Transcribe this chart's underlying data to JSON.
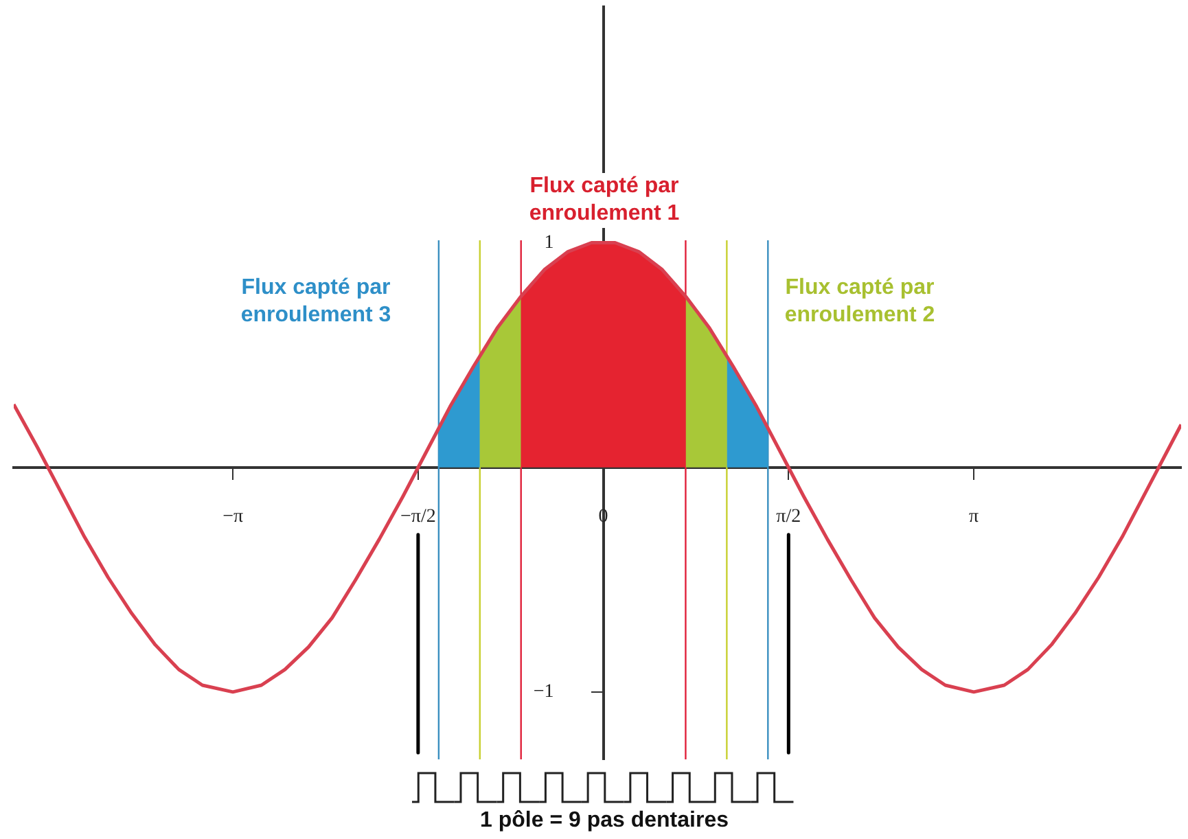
{
  "chart_data": {
    "type": "line",
    "xlim": [
      -5,
      4.9
    ],
    "ylim": [
      -1.3,
      2.05
    ],
    "xticks": [
      {
        "value": -3.1416,
        "label": "−π"
      },
      {
        "value": -1.5708,
        "label": "−π/2"
      },
      {
        "value": 0,
        "label": "0"
      },
      {
        "value": 1.5708,
        "label": "π/2"
      },
      {
        "value": 3.1416,
        "label": "π"
      }
    ],
    "yticks": [
      {
        "value": -1,
        "label": "−1"
      },
      {
        "value": 1,
        "label": "1"
      }
    ],
    "grid": false,
    "legend": false,
    "marker": "none",
    "series": [
      {
        "type": "area",
        "color": "#2e9ad0",
        "x": [
          -1.396,
          -1.3,
          -1.2,
          -1.1,
          -1.047
        ],
        "values": [
          0.17,
          0.27,
          0.36,
          0.45,
          0.5
        ]
      },
      {
        "type": "area",
        "color": "#a8c838",
        "x": [
          -1.047,
          -1,
          -0.9,
          -0.8,
          -0.698
        ],
        "values": [
          0.5,
          0.54,
          0.62,
          0.7,
          0.77
        ]
      },
      {
        "type": "area",
        "color": "#e52330",
        "x": [
          -0.698,
          -0.6,
          -0.5,
          -0.4,
          -0.3,
          -0.2,
          -0.1,
          0,
          0.1,
          0.2,
          0.3,
          0.4,
          0.5,
          0.6,
          0.698
        ],
        "values": [
          0.77,
          0.83,
          0.88,
          0.92,
          0.96,
          0.98,
          1,
          1,
          1,
          0.98,
          0.96,
          0.92,
          0.88,
          0.83,
          0.77
        ]
      },
      {
        "type": "area",
        "color": "#a8c838",
        "x": [
          0.698,
          0.8,
          0.9,
          1,
          1.047
        ],
        "values": [
          0.77,
          0.7,
          0.62,
          0.54,
          0.5
        ]
      },
      {
        "type": "area",
        "color": "#2e9ad0",
        "x": [
          1.047,
          1.1,
          1.2,
          1.3,
          1.396
        ],
        "values": [
          0.5,
          0.45,
          0.36,
          0.27,
          0.17
        ]
      },
      {
        "type": "line",
        "color": "#d94050",
        "x": [
          -5,
          -4.8,
          -4.6,
          -4.4,
          -4.2,
          -4,
          -3.8,
          -3.6,
          -3.4,
          -3.1416,
          -2.9,
          -2.7,
          -2.5,
          -2.3,
          -2.1,
          -1.9,
          -1.7,
          -1.5,
          -1.3,
          -1.1,
          -0.9,
          -0.7,
          -0.5,
          -0.3,
          -0.1,
          0,
          0.1,
          0.3,
          0.5,
          0.7,
          0.9,
          1.1,
          1.3,
          1.5,
          1.7,
          1.9,
          2.1,
          2.3,
          2.5,
          2.7,
          2.9,
          3.1416,
          3.4,
          3.6,
          3.8,
          4,
          4.2,
          4.4,
          4.6,
          4.8,
          4.9
        ],
        "values": [
          0.28,
          0.09,
          -0.11,
          -0.31,
          -0.49,
          -0.65,
          -0.79,
          -0.9,
          -0.97,
          -1,
          -0.97,
          -0.9,
          -0.8,
          -0.67,
          -0.5,
          -0.32,
          -0.13,
          0.07,
          0.27,
          0.45,
          0.62,
          0.76,
          0.88,
          0.96,
          1,
          1,
          1,
          0.96,
          0.88,
          0.76,
          0.62,
          0.45,
          0.27,
          0.07,
          -0.13,
          -0.32,
          -0.5,
          -0.67,
          -0.8,
          -0.9,
          -0.97,
          -1,
          -0.97,
          -0.9,
          -0.79,
          -0.65,
          -0.49,
          -0.31,
          -0.11,
          0.09,
          0.19
        ]
      },
      {
        "type": "line",
        "color": "#000000",
        "x": [
          -1.5708,
          -1.5708
        ],
        "values": [
          -0.3,
          -1.27
        ]
      },
      {
        "type": "line",
        "color": "#000000",
        "x": [
          1.5708,
          1.5708
        ],
        "values": [
          -0.3,
          -1.27
        ]
      }
    ],
    "ref_lines": [
      {
        "axis": "x",
        "value": -1.396,
        "color": "#3a8fc0"
      },
      {
        "axis": "x",
        "value": -1.047,
        "color": "#c8d030"
      },
      {
        "axis": "x",
        "value": -0.698,
        "color": "#e0203a"
      },
      {
        "axis": "x",
        "value": 0.698,
        "color": "#e0203a"
      },
      {
        "axis": "x",
        "value": 1.047,
        "color": "#c8d030"
      },
      {
        "axis": "x",
        "value": 1.396,
        "color": "#3a8fc0"
      }
    ],
    "annotations": [
      "Flux capté par\nenroulement 1",
      "Flux capté par\nenroulement 3",
      "Flux capté par\nenroulement 2",
      "1 pôle = 9 pas dentaires"
    ]
  }
}
